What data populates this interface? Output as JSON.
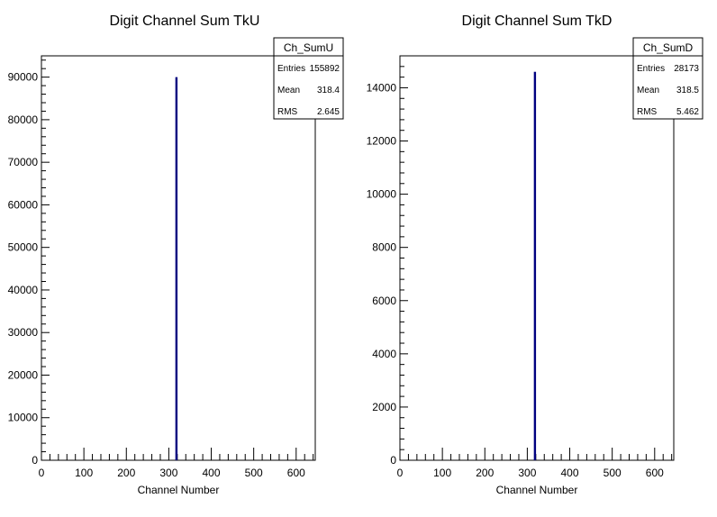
{
  "chart_data": [
    {
      "type": "bar",
      "title": "Digit Channel Sum TkU",
      "xlabel": "Channel Number",
      "ylabel": "",
      "xlim": [
        0,
        645
      ],
      "ylim": [
        0,
        95000
      ],
      "xticks": [
        0,
        100,
        200,
        300,
        400,
        500,
        600
      ],
      "yticks": [
        0,
        10000,
        20000,
        30000,
        40000,
        50000,
        60000,
        70000,
        80000,
        90000
      ],
      "x": [
        318
      ],
      "values": [
        90000
      ],
      "series_color": "#000080",
      "stats": {
        "name": "Ch_SumU",
        "rows": [
          {
            "label": "Entries",
            "value": "155892"
          },
          {
            "label": "Mean",
            "value": "318.4"
          },
          {
            "label": "RMS",
            "value": "2.645"
          }
        ]
      }
    },
    {
      "type": "bar",
      "title": "Digit Channel Sum TkD",
      "xlabel": "Channel Number",
      "ylabel": "",
      "xlim": [
        0,
        645
      ],
      "ylim": [
        0,
        15200
      ],
      "xticks": [
        0,
        100,
        200,
        300,
        400,
        500,
        600
      ],
      "yticks": [
        0,
        2000,
        4000,
        6000,
        8000,
        10000,
        12000,
        14000
      ],
      "x": [
        318
      ],
      "values": [
        14600
      ],
      "series_color": "#000080",
      "stats": {
        "name": "Ch_SumD",
        "rows": [
          {
            "label": "Entries",
            "value": "28173"
          },
          {
            "label": "Mean",
            "value": "318.5"
          },
          {
            "label": "RMS",
            "value": "5.462"
          }
        ]
      }
    }
  ]
}
